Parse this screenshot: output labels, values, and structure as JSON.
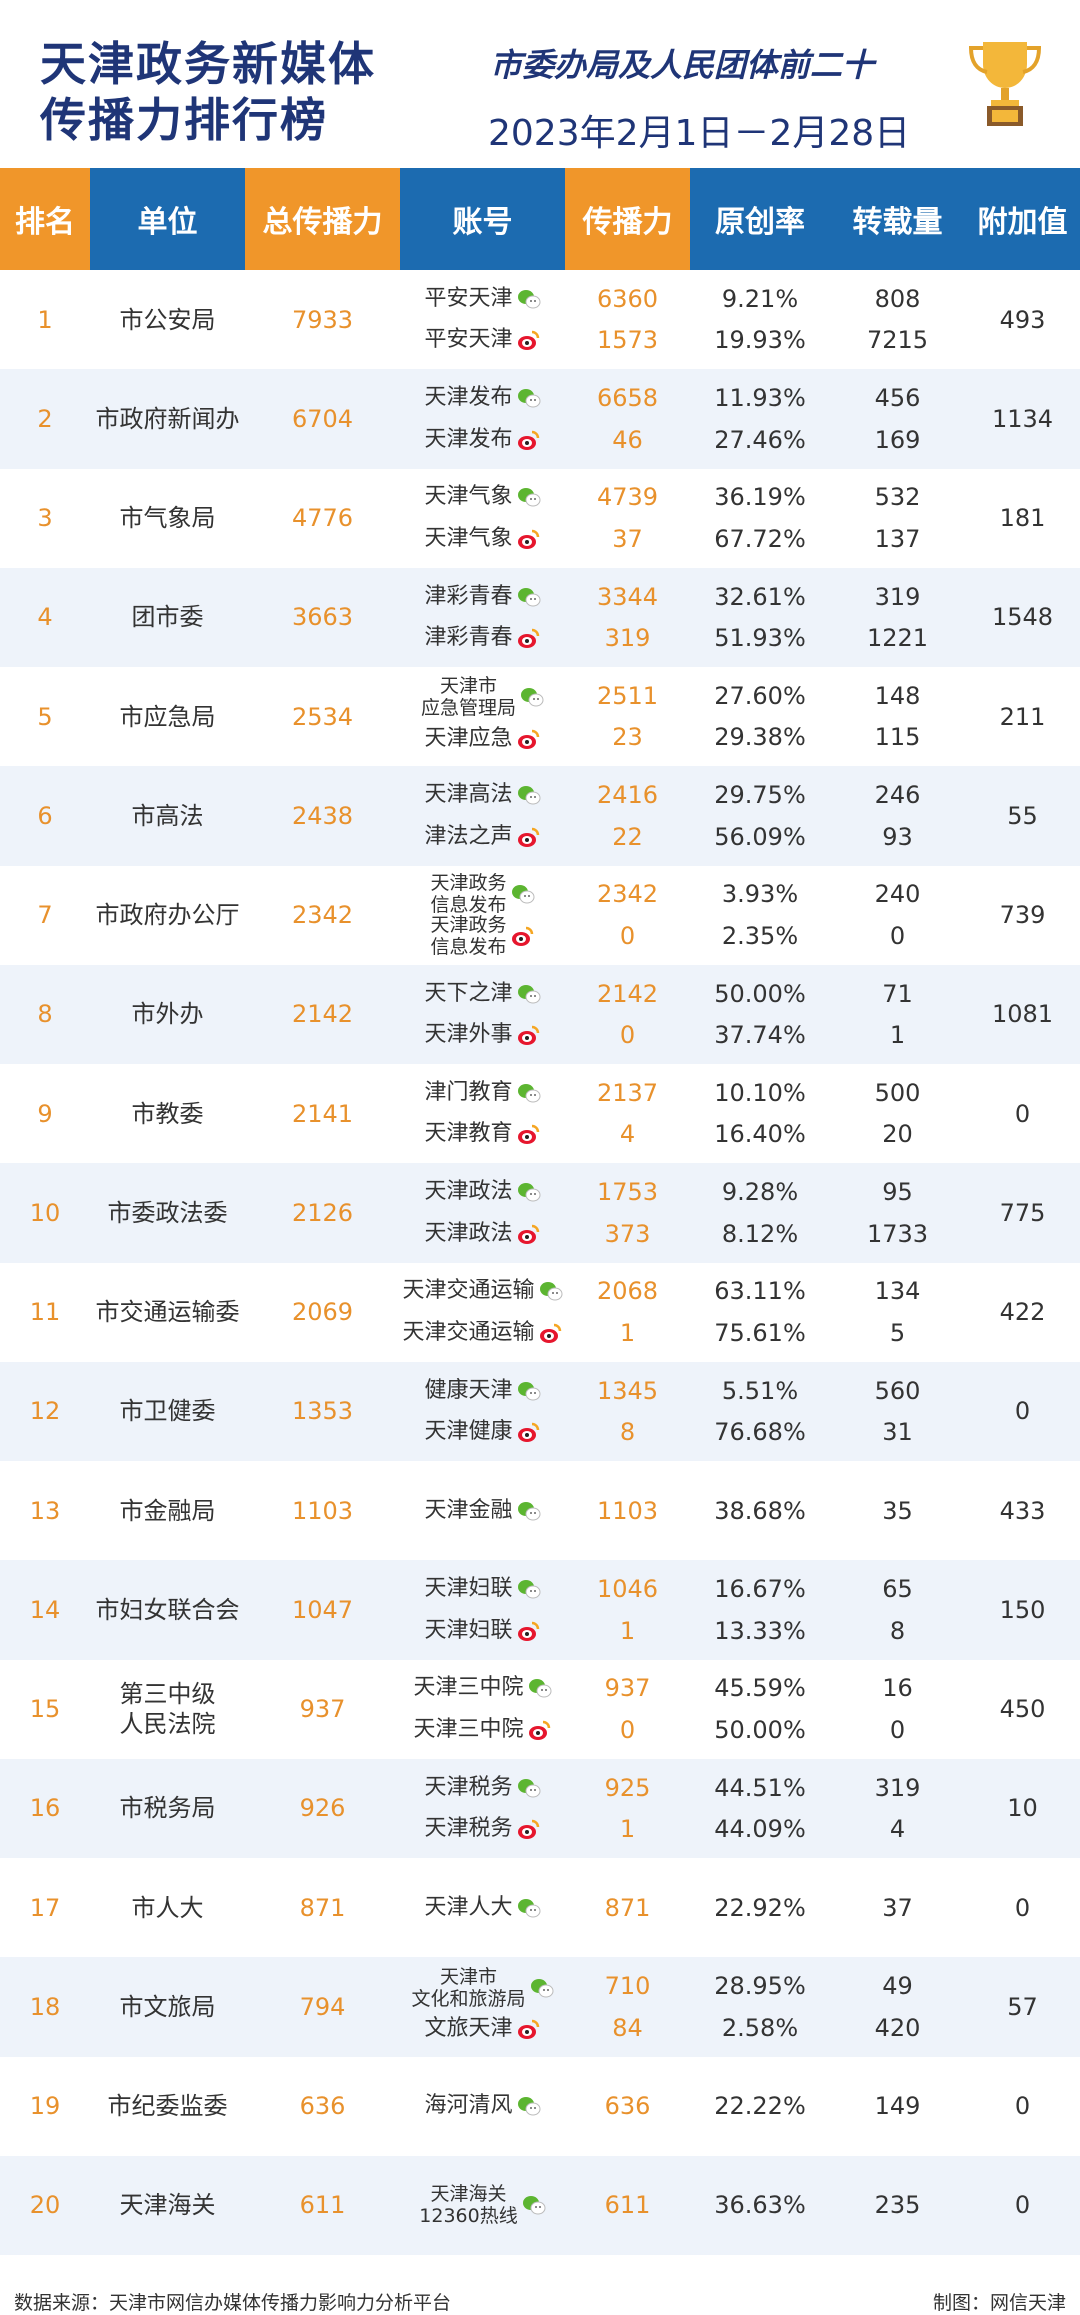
{
  "header": {
    "title_line1": "天津政务新媒体",
    "title_line2": "传播力排行榜",
    "subtitle": "市委办局及人民团体前二十",
    "date_range": "2023年2月1日－2月28日",
    "trophy_icon": "trophy-icon"
  },
  "colors": {
    "orange": "#f0962a",
    "blue": "#1c6bb0",
    "navy": "#1f3577",
    "row_alt": "#eef3fa",
    "number_orange": "#e8912c"
  },
  "columns": [
    "排名",
    "单位",
    "总传播力",
    "账号",
    "传播力",
    "原创率",
    "转载量",
    "附加值"
  ],
  "rows": [
    {
      "rank": "1",
      "unit": "市公安局",
      "total": "7933",
      "bonus": "493",
      "accounts": [
        {
          "name": "平安天津",
          "platform": "wechat",
          "reach": "6360",
          "original": "9.21%",
          "reposts": "808"
        },
        {
          "name": "平安天津",
          "platform": "weibo",
          "reach": "1573",
          "original": "19.93%",
          "reposts": "7215"
        }
      ]
    },
    {
      "rank": "2",
      "unit": "市政府新闻办",
      "total": "6704",
      "bonus": "1134",
      "accounts": [
        {
          "name": "天津发布",
          "platform": "wechat",
          "reach": "6658",
          "original": "11.93%",
          "reposts": "456"
        },
        {
          "name": "天津发布",
          "platform": "weibo",
          "reach": "46",
          "original": "27.46%",
          "reposts": "169"
        }
      ]
    },
    {
      "rank": "3",
      "unit": "市气象局",
      "total": "4776",
      "bonus": "181",
      "accounts": [
        {
          "name": "天津气象",
          "platform": "wechat",
          "reach": "4739",
          "original": "36.19%",
          "reposts": "532"
        },
        {
          "name": "天津气象",
          "platform": "weibo",
          "reach": "37",
          "original": "67.72%",
          "reposts": "137"
        }
      ]
    },
    {
      "rank": "4",
      "unit": "团市委",
      "total": "3663",
      "bonus": "1548",
      "accounts": [
        {
          "name": "津彩青春",
          "platform": "wechat",
          "reach": "3344",
          "original": "32.61%",
          "reposts": "319"
        },
        {
          "name": "津彩青春",
          "platform": "weibo",
          "reach": "319",
          "original": "51.93%",
          "reposts": "1221"
        }
      ]
    },
    {
      "rank": "5",
      "unit": "市应急局",
      "total": "2534",
      "bonus": "211",
      "accounts": [
        {
          "name": "天津市\n应急管理局",
          "platform": "wechat",
          "reach": "2511",
          "original": "27.60%",
          "reposts": "148"
        },
        {
          "name": "天津应急",
          "platform": "weibo",
          "reach": "23",
          "original": "29.38%",
          "reposts": "115"
        }
      ]
    },
    {
      "rank": "6",
      "unit": "市高法",
      "total": "2438",
      "bonus": "55",
      "accounts": [
        {
          "name": "天津高法",
          "platform": "wechat",
          "reach": "2416",
          "original": "29.75%",
          "reposts": "246"
        },
        {
          "name": "津法之声",
          "platform": "weibo",
          "reach": "22",
          "original": "56.09%",
          "reposts": "93"
        }
      ]
    },
    {
      "rank": "7",
      "unit": "市政府办公厅",
      "total": "2342",
      "bonus": "739",
      "accounts": [
        {
          "name": "天津政务\n信息发布",
          "platform": "wechat",
          "reach": "2342",
          "original": "3.93%",
          "reposts": "240"
        },
        {
          "name": "天津政务\n信息发布",
          "platform": "weibo",
          "reach": "0",
          "original": "2.35%",
          "reposts": "0"
        }
      ]
    },
    {
      "rank": "8",
      "unit": "市外办",
      "total": "2142",
      "bonus": "1081",
      "accounts": [
        {
          "name": "天下之津",
          "platform": "wechat",
          "reach": "2142",
          "original": "50.00%",
          "reposts": "71"
        },
        {
          "name": "天津外事",
          "platform": "weibo",
          "reach": "0",
          "original": "37.74%",
          "reposts": "1"
        }
      ]
    },
    {
      "rank": "9",
      "unit": "市教委",
      "total": "2141",
      "bonus": "0",
      "accounts": [
        {
          "name": "津门教育",
          "platform": "wechat",
          "reach": "2137",
          "original": "10.10%",
          "reposts": "500"
        },
        {
          "name": "天津教育",
          "platform": "weibo",
          "reach": "4",
          "original": "16.40%",
          "reposts": "20"
        }
      ]
    },
    {
      "rank": "10",
      "unit": "市委政法委",
      "total": "2126",
      "bonus": "775",
      "accounts": [
        {
          "name": "天津政法",
          "platform": "wechat",
          "reach": "1753",
          "original": "9.28%",
          "reposts": "95"
        },
        {
          "name": "天津政法",
          "platform": "weibo",
          "reach": "373",
          "original": "8.12%",
          "reposts": "1733"
        }
      ]
    },
    {
      "rank": "11",
      "unit": "市交通运输委",
      "total": "2069",
      "bonus": "422",
      "accounts": [
        {
          "name": "天津交通运输",
          "platform": "wechat",
          "reach": "2068",
          "original": "63.11%",
          "reposts": "134"
        },
        {
          "name": "天津交通运输",
          "platform": "weibo",
          "reach": "1",
          "original": "75.61%",
          "reposts": "5"
        }
      ]
    },
    {
      "rank": "12",
      "unit": "市卫健委",
      "total": "1353",
      "bonus": "0",
      "accounts": [
        {
          "name": "健康天津",
          "platform": "wechat",
          "reach": "1345",
          "original": "5.51%",
          "reposts": "560"
        },
        {
          "name": "天津健康",
          "platform": "weibo",
          "reach": "8",
          "original": "76.68%",
          "reposts": "31"
        }
      ]
    },
    {
      "rank": "13",
      "unit": "市金融局",
      "total": "1103",
      "bonus": "433",
      "accounts": [
        {
          "name": "天津金融",
          "platform": "wechat",
          "reach": "1103",
          "original": "38.68%",
          "reposts": "35"
        }
      ]
    },
    {
      "rank": "14",
      "unit": "市妇女联合会",
      "total": "1047",
      "bonus": "150",
      "accounts": [
        {
          "name": "天津妇联",
          "platform": "wechat",
          "reach": "1046",
          "original": "16.67%",
          "reposts": "65"
        },
        {
          "name": "天津妇联",
          "platform": "weibo",
          "reach": "1",
          "original": "13.33%",
          "reposts": "8"
        }
      ]
    },
    {
      "rank": "15",
      "unit": "第三中级\n人民法院",
      "total": "937",
      "bonus": "450",
      "accounts": [
        {
          "name": "天津三中院",
          "platform": "wechat",
          "reach": "937",
          "original": "45.59%",
          "reposts": "16"
        },
        {
          "name": "天津三中院",
          "platform": "weibo",
          "reach": "0",
          "original": "50.00%",
          "reposts": "0"
        }
      ]
    },
    {
      "rank": "16",
      "unit": "市税务局",
      "total": "926",
      "bonus": "10",
      "accounts": [
        {
          "name": "天津税务",
          "platform": "wechat",
          "reach": "925",
          "original": "44.51%",
          "reposts": "319"
        },
        {
          "name": "天津税务",
          "platform": "weibo",
          "reach": "1",
          "original": "44.09%",
          "reposts": "4"
        }
      ]
    },
    {
      "rank": "17",
      "unit": "市人大",
      "total": "871",
      "bonus": "0",
      "accounts": [
        {
          "name": "天津人大",
          "platform": "wechat",
          "reach": "871",
          "original": "22.92%",
          "reposts": "37"
        }
      ]
    },
    {
      "rank": "18",
      "unit": "市文旅局",
      "total": "794",
      "bonus": "57",
      "accounts": [
        {
          "name": "天津市\n文化和旅游局",
          "platform": "wechat",
          "reach": "710",
          "original": "28.95%",
          "reposts": "49"
        },
        {
          "name": "文旅天津",
          "platform": "weibo",
          "reach": "84",
          "original": "2.58%",
          "reposts": "420"
        }
      ]
    },
    {
      "rank": "19",
      "unit": "市纪委监委",
      "total": "636",
      "bonus": "0",
      "accounts": [
        {
          "name": "海河清风",
          "platform": "wechat",
          "reach": "636",
          "original": "22.22%",
          "reposts": "149"
        }
      ]
    },
    {
      "rank": "20",
      "unit": "天津海关",
      "total": "611",
      "bonus": "0",
      "accounts": [
        {
          "name": "天津海关\n12360热线",
          "platform": "wechat",
          "reach": "611",
          "original": "36.63%",
          "reposts": "235"
        }
      ]
    }
  ],
  "footer": {
    "source": "数据来源：天津市网信办媒体传播力影响力分析平台",
    "credit": "制图：网信天津"
  }
}
